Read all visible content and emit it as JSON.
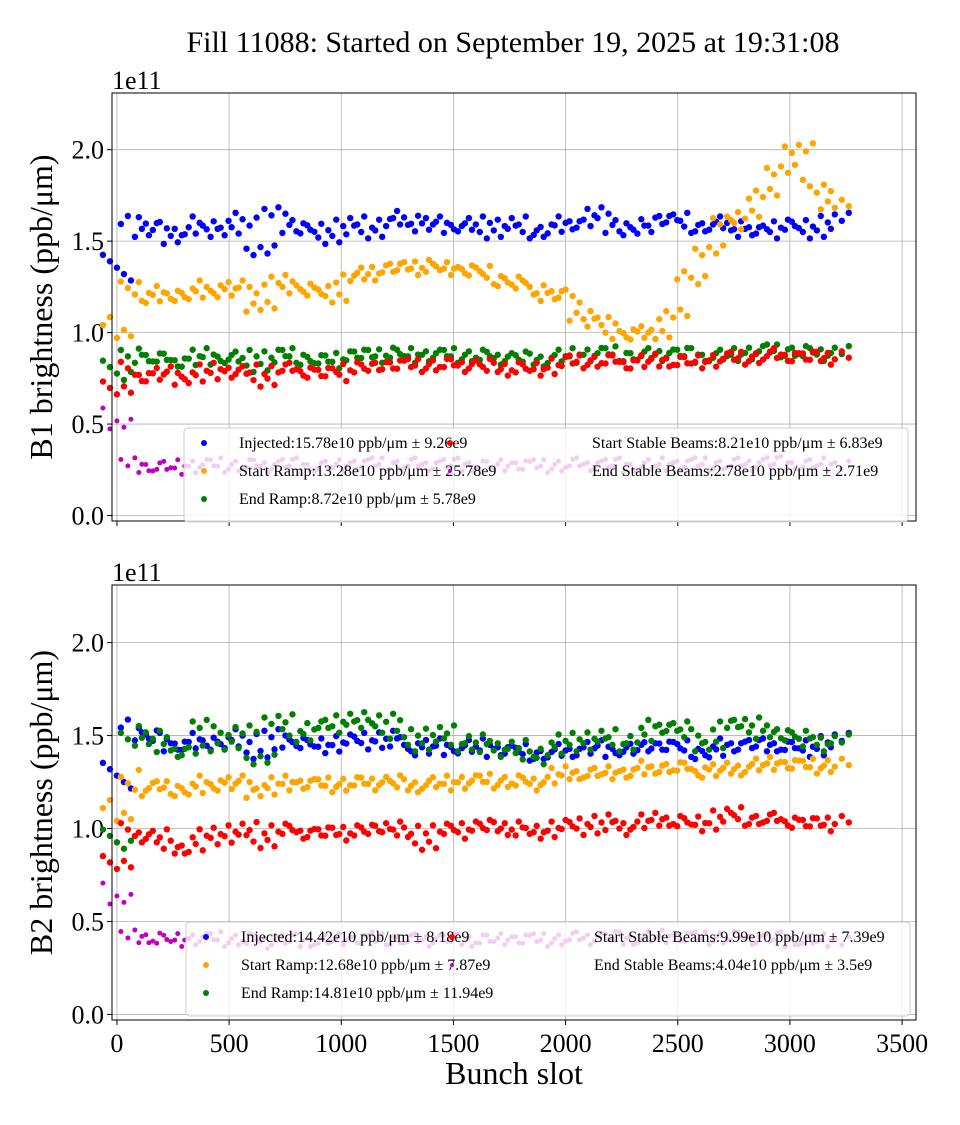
{
  "title": "Fill 11088: Started on September 19, 2025 at 19:31:08",
  "chart_data": [
    {
      "type": "scatter",
      "ylabel": "B1 brightness (ppb/μm)",
      "y_multiplier": "1e11",
      "xlabel": "",
      "xlim": [
        -22,
        3562
      ],
      "ylim": [
        -0.03,
        2.31
      ],
      "xticks": [
        0,
        500,
        1000,
        1500,
        2000,
        2500,
        3000,
        3500
      ],
      "yticks": [
        "0.0",
        "0.5",
        "1.0",
        "1.5",
        "2.0"
      ],
      "grid": true,
      "legend_position": "lower-right",
      "x": [
        0,
        80,
        160,
        240,
        320,
        400,
        480,
        560,
        640,
        720,
        800,
        880,
        960,
        1040,
        1120,
        1200,
        1280,
        1360,
        1440,
        1520,
        1600,
        1680,
        1760,
        1840,
        1920,
        2000,
        2080,
        2160,
        2240,
        2320,
        2400,
        2480,
        2560,
        2640,
        2720,
        2800,
        2880,
        2960,
        3040,
        3120,
        3200
      ],
      "series": [
        {
          "name": "Injected:15.78e10 ppb/μm ± 9.26e9",
          "color": "#0000ff",
          "values": [
            1.32,
            1.55,
            1.57,
            1.52,
            1.55,
            1.6,
            1.55,
            1.62,
            1.45,
            1.65,
            1.58,
            1.56,
            1.52,
            1.6,
            1.55,
            1.6,
            1.63,
            1.58,
            1.6,
            1.58,
            1.6,
            1.55,
            1.6,
            1.55,
            1.56,
            1.6,
            1.6,
            1.65,
            1.58,
            1.55,
            1.62,
            1.62,
            1.58,
            1.58,
            1.6,
            1.55,
            1.55,
            1.6,
            1.58,
            1.55,
            1.62
          ]
        },
        {
          "name": "Start Ramp:13.28e10 ppb/μm ± 25.78e9",
          "color": "#ffa500",
          "values": [
            0.98,
            1.2,
            1.18,
            1.22,
            1.2,
            1.25,
            1.22,
            1.25,
            1.15,
            1.28,
            1.25,
            1.22,
            1.2,
            1.3,
            1.32,
            1.35,
            1.35,
            1.38,
            1.35,
            1.35,
            1.33,
            1.3,
            1.28,
            1.25,
            1.2,
            1.2,
            1.1,
            1.05,
            1.0,
            0.98,
            1.0,
            1.1,
            1.3,
            1.45,
            1.6,
            1.65,
            1.75,
            1.9,
            2.0,
            1.8,
            1.7
          ]
        },
        {
          "name": "End Ramp:8.72e10 ppb/μm ± 5.78e9",
          "color": "#008000",
          "values": [
            0.75,
            0.87,
            0.86,
            0.85,
            0.84,
            0.88,
            0.86,
            0.87,
            0.82,
            0.88,
            0.87,
            0.85,
            0.84,
            0.88,
            0.87,
            0.9,
            0.88,
            0.87,
            0.88,
            0.87,
            0.88,
            0.86,
            0.87,
            0.85,
            0.86,
            0.88,
            0.87,
            0.89,
            0.88,
            0.87,
            0.88,
            0.89,
            0.88,
            0.87,
            0.88,
            0.88,
            0.9,
            0.9,
            0.9,
            0.88,
            0.9
          ]
        },
        {
          "name": "Start Stable Beams:8.21e10 ppb/μm ± 6.83e9",
          "color": "#ff0000",
          "values": [
            0.68,
            0.77,
            0.76,
            0.78,
            0.75,
            0.8,
            0.78,
            0.79,
            0.74,
            0.8,
            0.8,
            0.78,
            0.77,
            0.82,
            0.8,
            0.83,
            0.82,
            0.82,
            0.83,
            0.82,
            0.83,
            0.8,
            0.82,
            0.8,
            0.8,
            0.84,
            0.84,
            0.85,
            0.84,
            0.83,
            0.85,
            0.85,
            0.84,
            0.84,
            0.86,
            0.86,
            0.87,
            0.88,
            0.87,
            0.86,
            0.88
          ]
        },
        {
          "name": "End Stable Beams:2.78e10 ppb/μm ± 2.71e9",
          "color": "#bf00bf",
          "values": [
            0.5,
            0.28,
            0.27,
            0.27,
            0.26,
            0.28,
            0.27,
            0.28,
            0.27,
            0.28,
            0.28,
            0.27,
            0.27,
            0.28,
            0.28,
            0.28,
            0.28,
            0.28,
            0.28,
            0.28,
            0.28,
            0.27,
            0.28,
            0.27,
            0.27,
            0.28,
            0.28,
            0.28,
            0.28,
            0.27,
            0.28,
            0.28,
            0.28,
            0.28,
            0.28,
            0.28,
            0.29,
            0.29,
            0.28,
            0.28,
            0.28
          ]
        }
      ]
    },
    {
      "type": "scatter",
      "ylabel": "B2 brightness (ppb/μm)",
      "y_multiplier": "1e11",
      "xlabel": "Bunch slot",
      "xlim": [
        -22,
        3562
      ],
      "ylim": [
        -0.03,
        2.31
      ],
      "xticks": [
        0,
        500,
        1000,
        1500,
        2000,
        2500,
        3000,
        3500
      ],
      "yticks": [
        "0.0",
        "0.5",
        "1.0",
        "1.5",
        "2.0"
      ],
      "grid": true,
      "legend_position": "lower-right",
      "x": [
        0,
        80,
        160,
        240,
        320,
        400,
        480,
        560,
        640,
        720,
        800,
        880,
        960,
        1040,
        1120,
        1200,
        1280,
        1360,
        1440,
        1520,
        1600,
        1680,
        1760,
        1840,
        1920,
        2000,
        2080,
        2160,
        2240,
        2320,
        2400,
        2480,
        2560,
        2640,
        2720,
        2800,
        2880,
        2960,
        3040,
        3120,
        3200
      ],
      "series": [
        {
          "name": "Injected:14.42e10 ppb/μm ± 8.18e9",
          "color": "#0000ff",
          "values": [
            1.25,
            1.5,
            1.48,
            1.45,
            1.44,
            1.48,
            1.45,
            1.5,
            1.4,
            1.5,
            1.47,
            1.45,
            1.44,
            1.48,
            1.46,
            1.5,
            1.45,
            1.42,
            1.45,
            1.43,
            1.45,
            1.42,
            1.42,
            1.4,
            1.4,
            1.42,
            1.42,
            1.44,
            1.42,
            1.43,
            1.45,
            1.44,
            1.42,
            1.4,
            1.45,
            1.45,
            1.45,
            1.45,
            1.44,
            1.42,
            1.48
          ]
        },
        {
          "name": "Start Ramp:12.68e10 ppb/μm ± 7.87e9",
          "color": "#ffa500",
          "values": [
            1.05,
            1.2,
            1.22,
            1.22,
            1.2,
            1.25,
            1.23,
            1.25,
            1.2,
            1.25,
            1.24,
            1.24,
            1.23,
            1.25,
            1.24,
            1.26,
            1.23,
            1.24,
            1.25,
            1.24,
            1.26,
            1.25,
            1.26,
            1.24,
            1.26,
            1.3,
            1.3,
            1.3,
            1.3,
            1.3,
            1.33,
            1.33,
            1.32,
            1.3,
            1.32,
            1.33,
            1.35,
            1.35,
            1.34,
            1.33,
            1.35
          ]
        },
        {
          "name": "End Ramp:14.81e10 ppb/μm ± 11.94e9",
          "color": "#008000",
          "values": [
            0.9,
            1.48,
            1.5,
            1.42,
            1.42,
            1.55,
            1.45,
            1.52,
            1.38,
            1.58,
            1.5,
            1.55,
            1.55,
            1.6,
            1.55,
            1.6,
            1.5,
            1.45,
            1.52,
            1.45,
            1.48,
            1.42,
            1.45,
            1.38,
            1.42,
            1.48,
            1.45,
            1.5,
            1.45,
            1.48,
            1.55,
            1.55,
            1.5,
            1.45,
            1.55,
            1.58,
            1.5,
            1.52,
            1.5,
            1.45,
            1.48
          ]
        },
        {
          "name": "Start Stable Beams:9.99e10 ppb/μm ± 7.39e9",
          "color": "#ff0000",
          "values": [
            0.8,
            0.96,
            0.97,
            0.9,
            0.9,
            0.97,
            0.95,
            1.0,
            0.93,
            1.0,
            0.98,
            0.98,
            0.97,
            1.0,
            0.98,
            1.02,
            0.98,
            0.92,
            1.0,
            0.98,
            1.02,
            1.0,
            1.02,
            0.98,
            0.98,
            1.02,
            1.0,
            1.05,
            1.0,
            1.02,
            1.05,
            1.05,
            1.03,
            1.02,
            1.08,
            1.05,
            1.05,
            1.05,
            1.03,
            1.02,
            1.05
          ]
        },
        {
          "name": "End Stable Beams:4.04e10 ppb/μm ± 3.5e9",
          "color": "#bf00bf",
          "values": [
            0.62,
            0.42,
            0.42,
            0.4,
            0.4,
            0.41,
            0.4,
            0.41,
            0.39,
            0.4,
            0.4,
            0.4,
            0.4,
            0.41,
            0.4,
            0.41,
            0.4,
            0.4,
            0.41,
            0.4,
            0.41,
            0.4,
            0.41,
            0.4,
            0.4,
            0.41,
            0.41,
            0.42,
            0.41,
            0.41,
            0.42,
            0.42,
            0.41,
            0.41,
            0.42,
            0.41,
            0.41,
            0.41,
            0.4,
            0.4,
            0.4
          ]
        }
      ]
    }
  ]
}
